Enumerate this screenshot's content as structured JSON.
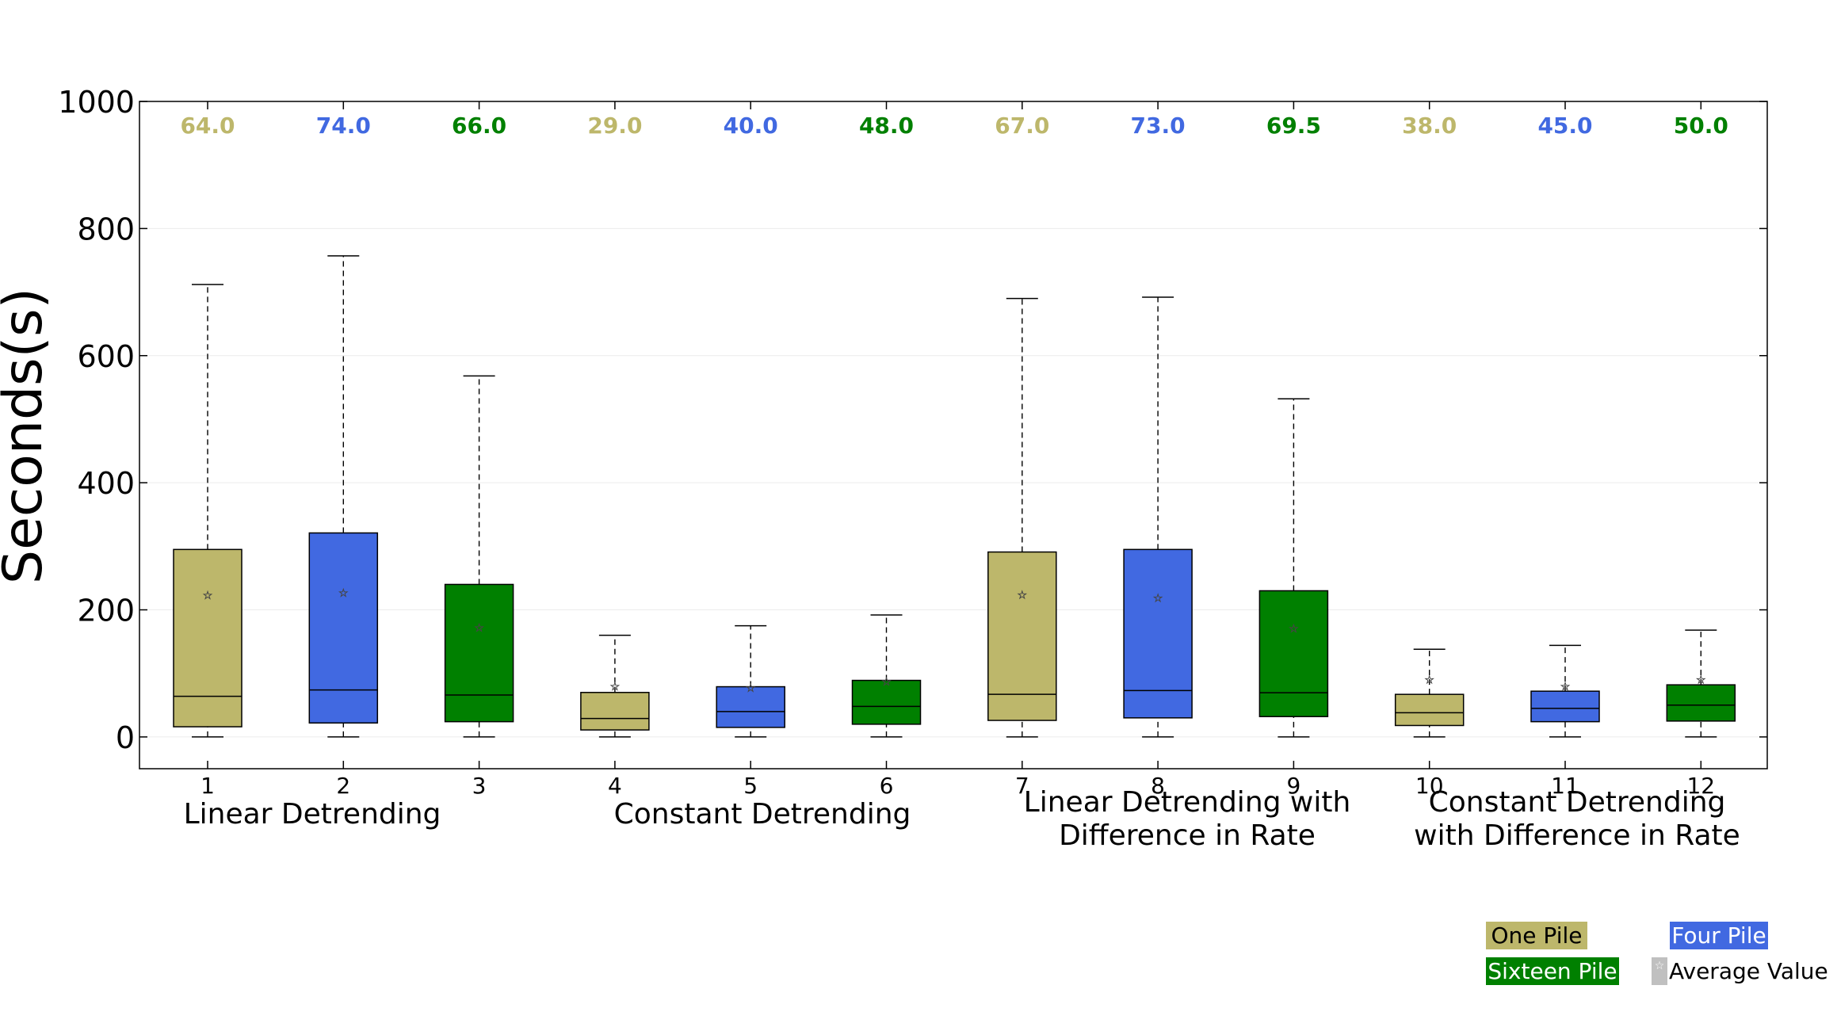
{
  "chart_data": {
    "type": "boxplot",
    "ylabel": "Seconds(s)",
    "ylim": [
      -50,
      1000
    ],
    "yticks": [
      0,
      200,
      400,
      600,
      800,
      1000
    ],
    "grid": true,
    "categories": [
      "1",
      "2",
      "3",
      "4",
      "5",
      "6",
      "7",
      "8",
      "9",
      "10",
      "11",
      "12"
    ],
    "groups": [
      {
        "label": "Linear Detrending",
        "positions": [
          1,
          3
        ]
      },
      {
        "label": "Constant Detrending",
        "positions": [
          4,
          6
        ]
      },
      {
        "label": "Linear Detrending with Difference in Rate",
        "positions": [
          7,
          9
        ]
      },
      {
        "label": "Constant Detrending with Difference in Rate",
        "positions": [
          10,
          12
        ]
      }
    ],
    "boxes": [
      {
        "pos": 1,
        "series": "One Pile",
        "whisker_low": 0,
        "q1": 16,
        "median": 64,
        "q3": 295,
        "whisker_high": 712,
        "mean": 223,
        "median_label": "64.0"
      },
      {
        "pos": 2,
        "series": "Four Pile",
        "whisker_low": 0,
        "q1": 22,
        "median": 74,
        "q3": 321,
        "whisker_high": 757,
        "mean": 227,
        "median_label": "74.0"
      },
      {
        "pos": 3,
        "series": "Sixteen Pile",
        "whisker_low": 0,
        "q1": 24,
        "median": 66,
        "q3": 240,
        "whisker_high": 568,
        "mean": 172,
        "median_label": "66.0"
      },
      {
        "pos": 4,
        "series": "One Pile",
        "whisker_low": 0,
        "q1": 11,
        "median": 29,
        "q3": 70,
        "whisker_high": 160,
        "mean": 80,
        "median_label": "29.0"
      },
      {
        "pos": 5,
        "series": "Four Pile",
        "whisker_low": 0,
        "q1": 15,
        "median": 40,
        "q3": 79,
        "whisker_high": 175,
        "mean": 77,
        "median_label": "40.0"
      },
      {
        "pos": 6,
        "series": "Sixteen Pile",
        "whisker_low": 0,
        "q1": 20,
        "median": 48,
        "q3": 89,
        "whisker_high": 192,
        "mean": 87,
        "median_label": "48.0"
      },
      {
        "pos": 7,
        "series": "One Pile",
        "whisker_low": 0,
        "q1": 26,
        "median": 67,
        "q3": 291,
        "whisker_high": 690,
        "mean": 224,
        "median_label": "67.0"
      },
      {
        "pos": 8,
        "series": "Four Pile",
        "whisker_low": 0,
        "q1": 30,
        "median": 73,
        "q3": 295,
        "whisker_high": 692,
        "mean": 219,
        "median_label": "73.0"
      },
      {
        "pos": 9,
        "series": "Sixteen Pile",
        "whisker_low": 0,
        "q1": 32,
        "median": 69.5,
        "q3": 230,
        "whisker_high": 532,
        "mean": 171,
        "median_label": "69.5"
      },
      {
        "pos": 10,
        "series": "One Pile",
        "whisker_low": 0,
        "q1": 18,
        "median": 38,
        "q3": 67,
        "whisker_high": 138,
        "mean": 90,
        "median_label": "38.0"
      },
      {
        "pos": 11,
        "series": "Four Pile",
        "whisker_low": 0,
        "q1": 24,
        "median": 45,
        "q3": 72,
        "whisker_high": 144,
        "mean": 80,
        "median_label": "45.0"
      },
      {
        "pos": 12,
        "series": "Sixteen Pile",
        "whisker_low": 0,
        "q1": 25,
        "median": 50,
        "q3": 82,
        "whisker_high": 168,
        "mean": 90,
        "median_label": "50.0"
      }
    ],
    "series": [
      {
        "name": "One Pile",
        "color": "#bdb76b"
      },
      {
        "name": "Four Pile",
        "color": "#4169e1"
      },
      {
        "name": "Sixteen Pile",
        "color": "#008000"
      }
    ],
    "legend": {
      "placement": "bottom-right",
      "entries": [
        "One Pile",
        "Four Pile",
        "Sixteen Pile",
        "Average Value"
      ],
      "mean_marker_label": "Average Value",
      "mean_marker_color": "#c0c0c0"
    }
  }
}
